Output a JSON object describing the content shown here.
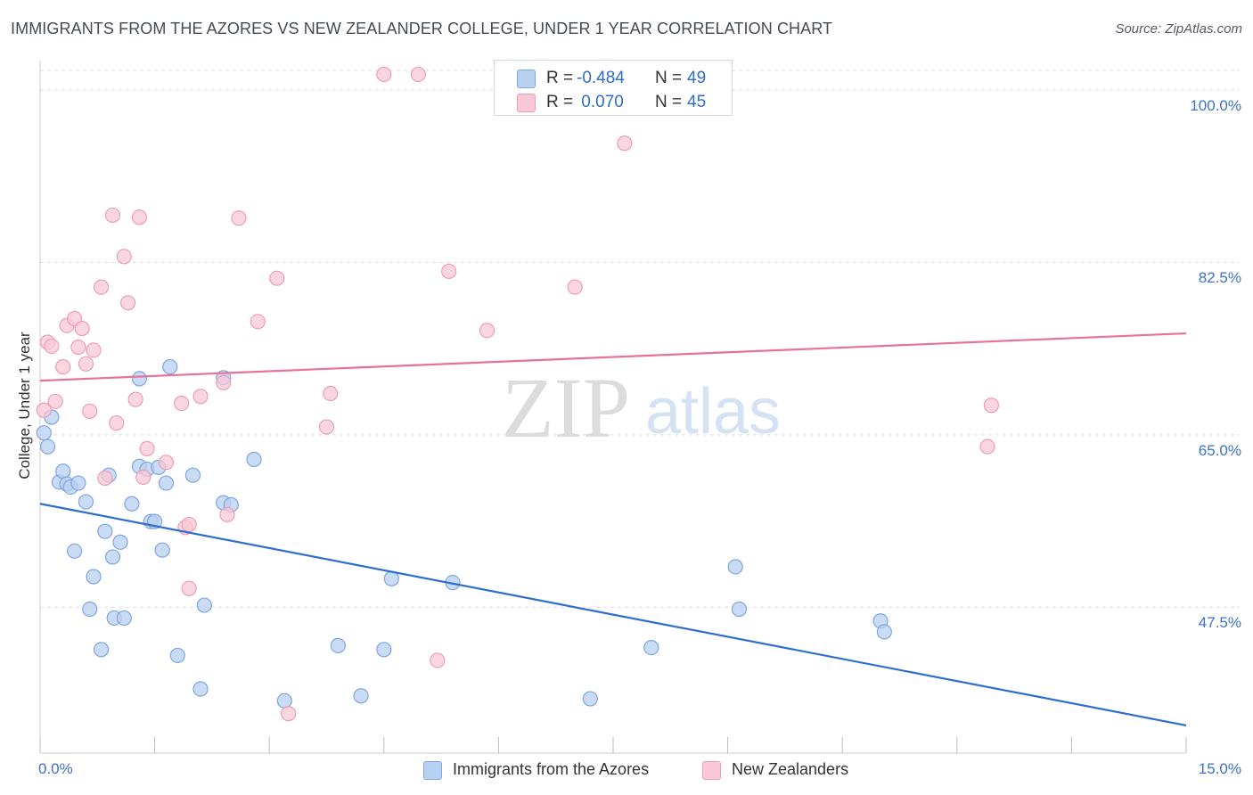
{
  "header": {
    "title": "IMMIGRANTS FROM THE AZORES VS NEW ZEALANDER COLLEGE, UNDER 1 YEAR CORRELATION CHART",
    "source": "Source: ZipAtlas.com"
  },
  "watermark": {
    "zip": "ZIP",
    "atlas": "atlas"
  },
  "legend_top": {
    "rows": [
      {
        "r_label": "R =",
        "r_value": "-0.484",
        "n_label": "N =",
        "n_value": "49"
      },
      {
        "r_label": "R =",
        "r_value": " 0.070",
        "n_label": "N =",
        "n_value": "45"
      }
    ]
  },
  "legend_bottom": {
    "items": [
      {
        "label": "Immigrants from the Azores"
      },
      {
        "label": "New Zealanders"
      }
    ]
  },
  "colors": {
    "blue_fill": "#b8d0f2",
    "blue_stroke": "#7ea6e0",
    "blue_line": "#2e6dd0",
    "pink_fill": "#f8c8d6",
    "pink_stroke": "#ef9db6",
    "pink_line": "#e8719a",
    "grid": "#dddddd",
    "tick_text": "#3a72cc"
  },
  "chart_data": {
    "type": "scatter",
    "title": "IMMIGRANTS FROM THE AZORES VS NEW ZEALANDER COLLEGE, UNDER 1 YEAR CORRELATION CHART",
    "xlabel": "",
    "ylabel": "College, Under 1 year",
    "xlim": [
      0,
      15
    ],
    "ylim": [
      33.5,
      102
    ],
    "x_tick_labels": [
      "0.0%",
      "15.0%"
    ],
    "y_ticks": [
      47.5,
      65.0,
      82.5,
      100.0
    ],
    "y_tick_labels": [
      "47.5%",
      "65.0%",
      "82.5%",
      "100.0%"
    ],
    "grid": true,
    "series": [
      {
        "name": "Immigrants from the Azores",
        "color": "blue",
        "R": -0.484,
        "N": 49,
        "trend": {
          "x": [
            0,
            15
          ],
          "y": [
            58.0,
            35.5
          ]
        },
        "points": [
          [
            0.05,
            65.2
          ],
          [
            0.1,
            63.8
          ],
          [
            0.15,
            66.8
          ],
          [
            0.25,
            60.2
          ],
          [
            0.3,
            61.3
          ],
          [
            0.35,
            60.0
          ],
          [
            0.4,
            59.7
          ],
          [
            0.5,
            60.1
          ],
          [
            0.6,
            58.2
          ],
          [
            0.45,
            53.2
          ],
          [
            0.7,
            50.6
          ],
          [
            0.65,
            47.3
          ],
          [
            0.8,
            43.2
          ],
          [
            0.85,
            55.2
          ],
          [
            0.9,
            60.9
          ],
          [
            0.95,
            52.6
          ],
          [
            0.97,
            46.4
          ],
          [
            1.05,
            54.1
          ],
          [
            1.1,
            46.4
          ],
          [
            1.2,
            58.0
          ],
          [
            1.3,
            61.8
          ],
          [
            1.3,
            70.7
          ],
          [
            1.4,
            61.5
          ],
          [
            1.45,
            56.2
          ],
          [
            1.5,
            56.2
          ],
          [
            1.55,
            61.7
          ],
          [
            1.6,
            53.3
          ],
          [
            1.65,
            60.1
          ],
          [
            1.7,
            71.9
          ],
          [
            1.8,
            42.6
          ],
          [
            2.0,
            60.9
          ],
          [
            2.1,
            39.2
          ],
          [
            2.15,
            47.7
          ],
          [
            2.4,
            58.1
          ],
          [
            2.4,
            70.8
          ],
          [
            2.5,
            57.9
          ],
          [
            2.8,
            62.5
          ],
          [
            3.2,
            38.0
          ],
          [
            3.9,
            43.6
          ],
          [
            4.2,
            38.5
          ],
          [
            4.5,
            43.2
          ],
          [
            4.6,
            50.4
          ],
          [
            5.4,
            50.0
          ],
          [
            7.2,
            38.2
          ],
          [
            8.0,
            43.4
          ],
          [
            9.1,
            51.6
          ],
          [
            9.15,
            47.3
          ],
          [
            11.0,
            46.1
          ],
          [
            11.05,
            45.0
          ]
        ]
      },
      {
        "name": "New Zealanders",
        "color": "pink",
        "R": 0.07,
        "N": 45,
        "trend": {
          "x": [
            0,
            15
          ],
          "y": [
            70.5,
            75.3
          ]
        },
        "points": [
          [
            0.05,
            67.5
          ],
          [
            0.1,
            74.4
          ],
          [
            0.15,
            74.0
          ],
          [
            0.2,
            68.4
          ],
          [
            0.3,
            71.9
          ],
          [
            0.35,
            76.1
          ],
          [
            0.45,
            76.8
          ],
          [
            0.5,
            73.9
          ],
          [
            0.55,
            75.8
          ],
          [
            0.6,
            72.2
          ],
          [
            0.65,
            67.4
          ],
          [
            0.7,
            73.6
          ],
          [
            0.8,
            80.0
          ],
          [
            0.85,
            60.6
          ],
          [
            0.95,
            87.3
          ],
          [
            1.0,
            66.2
          ],
          [
            1.1,
            83.1
          ],
          [
            1.15,
            78.4
          ],
          [
            1.25,
            68.6
          ],
          [
            1.3,
            87.1
          ],
          [
            1.35,
            60.7
          ],
          [
            1.4,
            63.6
          ],
          [
            1.65,
            62.2
          ],
          [
            1.85,
            68.2
          ],
          [
            1.9,
            55.6
          ],
          [
            1.95,
            49.4
          ],
          [
            1.95,
            55.9
          ],
          [
            2.1,
            68.9
          ],
          [
            2.4,
            70.3
          ],
          [
            2.45,
            56.9
          ],
          [
            2.6,
            87.0
          ],
          [
            2.85,
            76.5
          ],
          [
            3.1,
            80.9
          ],
          [
            3.75,
            65.8
          ],
          [
            3.8,
            69.2
          ],
          [
            4.5,
            101.6
          ],
          [
            4.95,
            101.6
          ],
          [
            5.2,
            42.1
          ],
          [
            5.35,
            81.6
          ],
          [
            5.85,
            75.6
          ],
          [
            3.25,
            36.7
          ],
          [
            7.0,
            80.0
          ],
          [
            7.65,
            94.6
          ],
          [
            12.45,
            68.0
          ],
          [
            12.4,
            63.8
          ]
        ]
      }
    ]
  }
}
